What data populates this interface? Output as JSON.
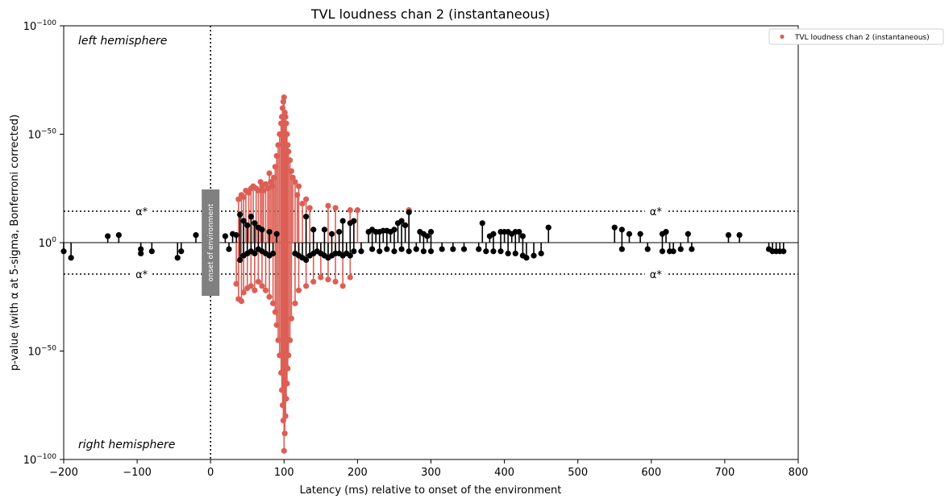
{
  "chart_data": {
    "type": "scatter",
    "title": "TVL loudness chan 2 (instantaneous)",
    "xlabel": "Latency (ms) relative to onset of the environment",
    "ylabel": "p-value (with α at 5-sigma, Bonferroni corrected)",
    "xlim": [
      -200,
      800
    ],
    "x_ticks": [
      -200,
      -100,
      0,
      100,
      200,
      300,
      400,
      500,
      600,
      700,
      800
    ],
    "x_tick_labels": [
      "−200",
      "−100",
      "0",
      "100",
      "200",
      "300",
      "400",
      "500",
      "600",
      "700",
      "800"
    ],
    "y_scale": "log (mirrored: left hemisphere above, right hemisphere below)",
    "y_tick_labels": [
      {
        "base": "10",
        "exp": "−100"
      },
      {
        "base": "10",
        "exp": "−50"
      },
      {
        "base": "10",
        "exp": "0"
      },
      {
        "base": "10",
        "exp": "−50"
      },
      {
        "base": "10",
        "exp": "−100"
      }
    ],
    "y_tick_values": [
      100,
      50,
      0,
      -50,
      -100
    ],
    "ylim": [
      -100,
      100
    ],
    "alpha_threshold": 14.5,
    "alpha_label": "α*",
    "onset_label": "onset of environment",
    "onset_x": 0,
    "annotations": {
      "top": "left hemisphere",
      "bottom": "right hemisphere"
    },
    "legend": {
      "position": "top-right",
      "entries": [
        "TVL loudness chan 2 (instantaneous)"
      ]
    },
    "colors": {
      "significant": "#dc5f55",
      "nonsignificant": "#000000",
      "onset_box": "#808080"
    },
    "series": [
      {
        "name": "TVL loudness chan 2 (instantaneous)",
        "hemisphere": "left",
        "color": "#dc5f55",
        "significant": true,
        "x": [
          38,
          42,
          45,
          48,
          52,
          55,
          58,
          62,
          65,
          68,
          70,
          72,
          75,
          78,
          80,
          82,
          84,
          86,
          88,
          90,
          92,
          94,
          96,
          97,
          98,
          99,
          100,
          101,
          102,
          103,
          104,
          105,
          106,
          108,
          110,
          112,
          115,
          118,
          120,
          125,
          130,
          135,
          160,
          170,
          190,
          200,
          270
        ],
        "y": [
          20,
          22,
          21,
          24,
          23,
          25,
          26,
          25,
          24,
          28,
          26,
          24,
          27,
          25,
          32,
          28,
          26,
          30,
          35,
          40,
          45,
          50,
          55,
          58,
          62,
          65,
          67,
          60,
          58,
          55,
          50,
          45,
          42,
          38,
          33,
          30,
          28,
          22,
          26,
          18,
          20,
          16,
          17,
          16,
          15,
          15,
          15
        ]
      },
      {
        "name": "TVL loudness chan 2 (instantaneous)",
        "hemisphere": "right",
        "color": "#dc5f55",
        "significant": true,
        "x": [
          35,
          38,
          42,
          45,
          50,
          55,
          60,
          65,
          70,
          75,
          80,
          85,
          88,
          90,
          92,
          94,
          96,
          97,
          98,
          99,
          100,
          101,
          102,
          103,
          104,
          105,
          106,
          108,
          110,
          115,
          120,
          130,
          140,
          150,
          160,
          170,
          180,
          190
        ],
        "y": [
          -19,
          -26,
          -27,
          -23,
          -21,
          -20,
          -22,
          -18,
          -20,
          -22,
          -25,
          -28,
          -32,
          -38,
          -45,
          -52,
          -60,
          -68,
          -75,
          -82,
          -96,
          -88,
          -80,
          -72,
          -65,
          -58,
          -52,
          -45,
          -35,
          -28,
          -22,
          -20,
          -18,
          -16,
          -17,
          -18,
          -20,
          -16
        ]
      },
      {
        "name": "nonsignificant",
        "hemisphere": "left",
        "color": "#000000",
        "significant": false,
        "x": [
          -140,
          -125,
          -20,
          20,
          30,
          35,
          40,
          45,
          50,
          55,
          60,
          65,
          70,
          80,
          90,
          130,
          140,
          155,
          165,
          175,
          180,
          190,
          195,
          215,
          220,
          225,
          230,
          235,
          240,
          245,
          250,
          255,
          260,
          265,
          270,
          285,
          290,
          295,
          300,
          370,
          380,
          385,
          395,
          400,
          405,
          410,
          415,
          420,
          425,
          460,
          550,
          560,
          570,
          585,
          615,
          620,
          650,
          705,
          720
        ],
        "y": [
          3,
          3.5,
          3.5,
          3,
          4,
          3.5,
          13,
          10,
          8,
          12,
          9,
          7,
          6,
          5,
          4,
          12,
          6,
          6,
          4,
          5,
          10,
          9,
          10,
          5,
          6,
          5,
          5,
          5.5,
          5.5,
          5,
          6,
          9,
          10,
          8,
          14,
          5,
          4,
          3,
          5,
          9,
          3,
          4,
          5,
          5,
          5,
          4,
          5,
          5,
          3,
          7,
          7,
          6,
          4,
          4,
          4,
          5,
          4,
          3.5,
          3.5
        ]
      },
      {
        "name": "nonsignificant",
        "hemisphere": "right",
        "color": "#000000",
        "significant": false,
        "x": [
          -200,
          -190,
          -95,
          -95,
          -80,
          -45,
          -40,
          25,
          40,
          45,
          50,
          55,
          60,
          65,
          70,
          75,
          80,
          85,
          115,
          120,
          125,
          130,
          135,
          140,
          145,
          150,
          155,
          160,
          165,
          170,
          175,
          180,
          185,
          190,
          195,
          205,
          220,
          230,
          240,
          250,
          260,
          270,
          280,
          290,
          300,
          315,
          330,
          345,
          365,
          375,
          385,
          395,
          405,
          415,
          425,
          430,
          440,
          450,
          560,
          595,
          615,
          625,
          630,
          640,
          655,
          760,
          765,
          770,
          775,
          780
        ],
        "y": [
          -4,
          -7,
          -3,
          -5,
          -4,
          -7,
          -4,
          -3,
          -8,
          -6,
          -5,
          -4,
          -5,
          -3,
          -4,
          -5,
          -6,
          -5,
          -5,
          -6,
          -7,
          -8,
          -6,
          -5,
          -4,
          -5,
          -6,
          -7,
          -6,
          -5,
          -5,
          -6,
          -5,
          -6,
          -4,
          -4,
          -3,
          -4,
          -3,
          -4,
          -3,
          -4,
          -3,
          -4,
          -4,
          -3,
          -3,
          -3,
          -3,
          -4,
          -4,
          -4,
          -5,
          -5,
          -6,
          -7,
          -6,
          -5,
          -3,
          -3,
          -4,
          -4,
          -4,
          -3,
          -3,
          -3,
          -4,
          -4,
          -4,
          -4
        ]
      }
    ]
  }
}
